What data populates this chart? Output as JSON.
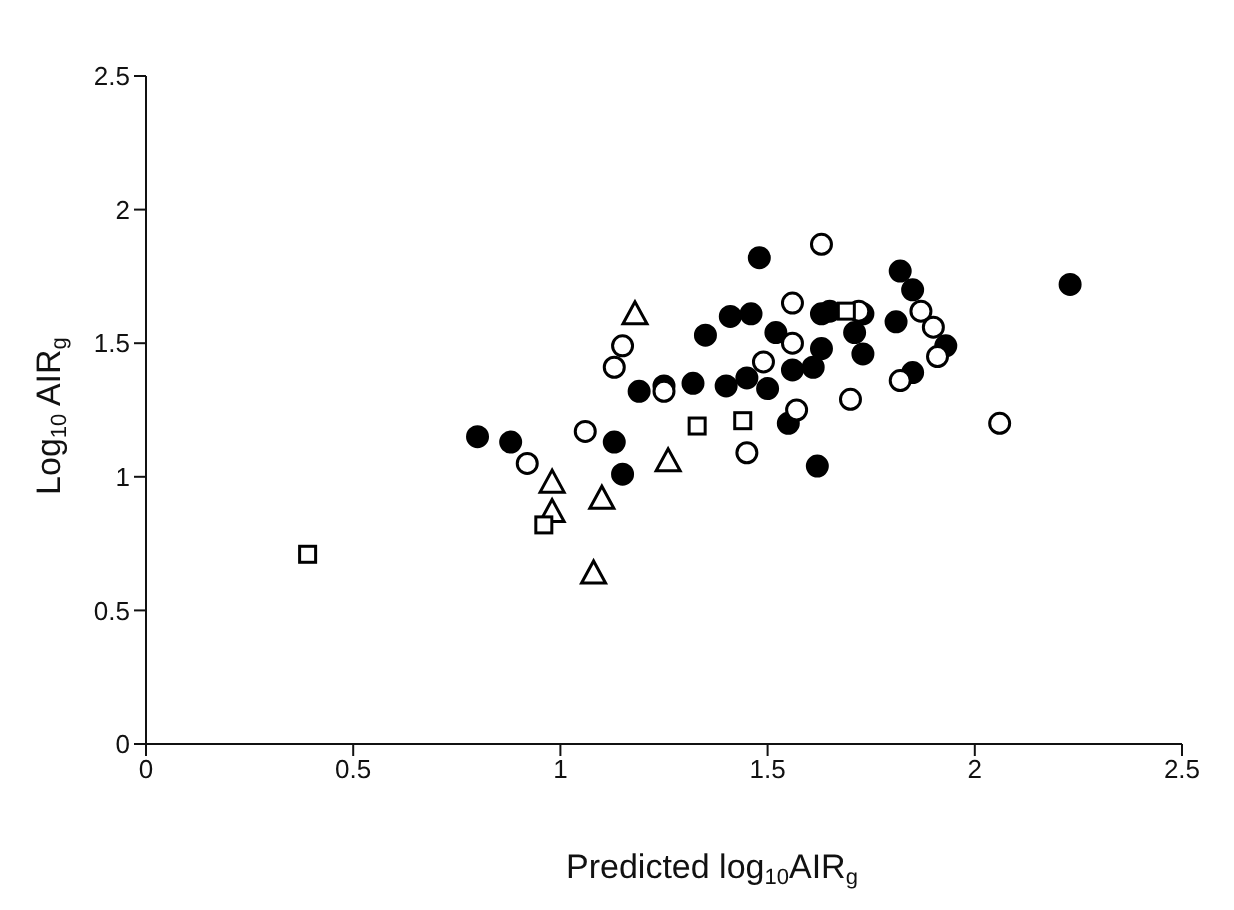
{
  "chart_data": {
    "type": "scatter",
    "xlabel": "Predicted log$_{10}$AIR$_{g}$",
    "ylabel": "Log$_{10}$ AIR$_{g}$",
    "xlim": [
      0,
      2.5
    ],
    "xticks": [
      0,
      0.5,
      1,
      1.5,
      2,
      2.5
    ],
    "ylim": [
      0,
      2.5
    ],
    "yticks": [
      0,
      0.5,
      1,
      1.5,
      2,
      2.5
    ],
    "grid": false,
    "legend": false,
    "series": [
      {
        "marker": "circle",
        "color": "#000000",
        "x": [
          0.8,
          0.88,
          1.13,
          1.15,
          1.19,
          1.25,
          1.32,
          1.35,
          1.4,
          1.41,
          1.45,
          1.46,
          1.48,
          1.5,
          1.52,
          1.56,
          1.55,
          1.61,
          1.63,
          1.63,
          1.65,
          1.62,
          1.71,
          1.73,
          1.73,
          1.81,
          1.82,
          1.85,
          1.85,
          1.93,
          2.23
        ],
        "values": [
          1.15,
          1.13,
          1.13,
          1.01,
          1.32,
          1.34,
          1.35,
          1.53,
          1.34,
          1.6,
          1.37,
          1.61,
          1.82,
          1.33,
          1.54,
          1.4,
          1.2,
          1.41,
          1.48,
          1.61,
          1.62,
          1.04,
          1.54,
          1.61,
          1.46,
          1.58,
          1.77,
          1.7,
          1.39,
          1.49,
          1.72
        ]
      },
      {
        "marker": "circle",
        "color": "#ffffff",
        "x": [
          0.92,
          1.06,
          1.13,
          1.15,
          1.25,
          1.45,
          1.49,
          1.56,
          1.56,
          1.57,
          1.63,
          1.7,
          1.72,
          1.82,
          1.87,
          1.9,
          1.91,
          2.06
        ],
        "values": [
          1.05,
          1.17,
          1.41,
          1.49,
          1.32,
          1.09,
          1.43,
          1.5,
          1.65,
          1.25,
          1.87,
          1.29,
          1.62,
          1.36,
          1.62,
          1.56,
          1.45,
          1.2
        ]
      },
      {
        "marker": "triangle",
        "color": "#ffffff",
        "x": [
          1.18,
          0.98,
          0.98,
          1.1,
          1.26,
          1.08
        ],
        "values": [
          1.61,
          0.98,
          0.87,
          0.92,
          1.06,
          0.64
        ]
      },
      {
        "marker": "square",
        "color": "#ffffff",
        "x": [
          0.39,
          0.96,
          1.33,
          1.44,
          1.69
        ],
        "values": [
          0.71,
          0.82,
          1.19,
          1.21,
          1.62
        ]
      }
    ]
  }
}
